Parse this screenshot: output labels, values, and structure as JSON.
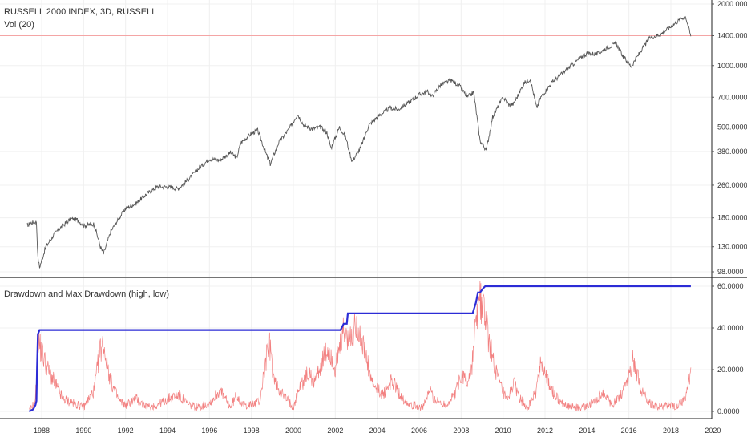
{
  "header": {
    "symbol_line": "RUSSELL 2000 INDEX, 3D, RUSSELL",
    "volume_line": "Vol (20)"
  },
  "lower_pane": {
    "title": "Drawdown and Max Drawdown (high, low)"
  },
  "colors": {
    "price_line": "#555555",
    "reference_line": "#f4a5a5",
    "drawdown": "#f06a6a",
    "max_drawdown": "#2c2cd6",
    "grid": "#f0f0f0",
    "axis_text": "#333333"
  },
  "chart_data": [
    {
      "type": "line",
      "title": "RUSSELL 2000 INDEX, 3D, RUSSELL",
      "y_scale": "log",
      "ylim": [
        92,
        2050
      ],
      "xlim": [
        1986,
        2020
      ],
      "x_ticks": [
        "1988",
        "1990",
        "1992",
        "1994",
        "1996",
        "1998",
        "2000",
        "2002",
        "2004",
        "2006",
        "2008",
        "2010",
        "2012",
        "2014",
        "2016",
        "2018",
        "2020"
      ],
      "y_ticks": [
        "98.0000",
        "130.0000",
        "180.0000",
        "260.0000",
        "380.0000",
        "500.0000",
        "700.0000",
        "1000.0000",
        "1400.0000",
        "2000.0000"
      ],
      "reference_line": 1400,
      "series": [
        {
          "x": [
            1987.3,
            1987.5,
            1987.75,
            1987.82,
            1987.9,
            1988.2,
            1988.6,
            1989.0,
            1989.4,
            1989.7,
            1990.0,
            1990.5,
            1990.8,
            1990.95,
            1991.3,
            1991.7,
            1992.0,
            1992.5,
            1993.0,
            1993.5,
            1994.0,
            1994.5,
            1995.0,
            1995.5,
            1996.0,
            1996.5,
            1997.0,
            1997.3,
            1997.5,
            1998.0,
            1998.3,
            1998.7,
            1998.9,
            1999.3,
            1999.8,
            2000.2,
            2000.5,
            2000.9,
            2001.3,
            2001.6,
            2001.8,
            2002.2,
            2002.5,
            2002.8,
            2003.2,
            2003.6,
            2004.0,
            2004.6,
            2005.0,
            2005.5,
            2006.0,
            2006.4,
            2006.6,
            2007.0,
            2007.5,
            2007.9,
            2008.3,
            2008.6,
            2008.9,
            2009.2,
            2009.5,
            2010.0,
            2010.3,
            2010.5,
            2011.0,
            2011.3,
            2011.6,
            2011.8,
            2012.3,
            2013.0,
            2013.5,
            2014.0,
            2014.5,
            2015.0,
            2015.4,
            2015.7,
            2016.1,
            2016.5,
            2017.0,
            2017.5,
            2018.0,
            2018.5,
            2018.7,
            2018.95
          ],
          "values": [
            165,
            170,
            172,
            115,
            103,
            130,
            150,
            165,
            178,
            176,
            165,
            168,
            130,
            120,
            155,
            180,
            200,
            212,
            235,
            255,
            255,
            250,
            278,
            315,
            350,
            345,
            375,
            355,
            420,
            465,
            482,
            370,
            330,
            420,
            490,
            580,
            510,
            490,
            500,
            470,
            395,
            500,
            445,
            340,
            395,
            510,
            560,
            620,
            610,
            660,
            720,
            745,
            705,
            800,
            850,
            800,
            700,
            740,
            430,
            385,
            560,
            700,
            640,
            650,
            820,
            860,
            620,
            700,
            820,
            950,
            1050,
            1150,
            1140,
            1230,
            1280,
            1120,
            990,
            1150,
            1370,
            1420,
            1550,
            1700,
            1740,
            1390
          ]
        }
      ]
    },
    {
      "type": "line",
      "title": "Drawdown and Max Drawdown (high, low)",
      "ylim": [
        -2,
        62
      ],
      "xlim": [
        1986,
        2020
      ],
      "y_ticks": [
        "0.0000",
        "20.0000",
        "40.0000",
        "60.0000"
      ],
      "series": [
        {
          "name": "Max Drawdown",
          "x": [
            1987.4,
            1987.6,
            1987.7,
            1987.75,
            1987.78,
            1987.82,
            1987.9,
            2002.1,
            2002.25,
            2002.4,
            2002.55,
            2002.6,
            2002.7,
            2008.55,
            2008.7,
            2008.8,
            2008.9,
            2009.05,
            2009.15,
            2018.95
          ],
          "values": [
            0,
            1,
            3,
            5,
            20,
            37,
            39,
            39,
            39,
            42,
            42,
            47,
            47,
            47,
            52,
            57,
            57,
            59,
            60,
            60
          ]
        },
        {
          "name": "Drawdown",
          "x": [
            1987.4,
            1987.7,
            1987.82,
            1987.95,
            1988.3,
            1988.7,
            1989.0,
            1989.5,
            1990.0,
            1990.5,
            1990.8,
            1990.95,
            1991.3,
            1991.7,
            1992.0,
            1992.5,
            1993.0,
            1993.5,
            1994.0,
            1994.5,
            1995.0,
            1995.5,
            1996.0,
            1996.5,
            1997.0,
            1997.3,
            1997.6,
            1998.0,
            1998.4,
            1998.7,
            1998.85,
            1999.1,
            1999.5,
            2000.0,
            2000.3,
            2000.7,
            2001.0,
            2001.3,
            2001.7,
            2002.0,
            2002.4,
            2002.8,
            2003.0,
            2003.4,
            2003.8,
            2004.3,
            2004.7,
            2005.2,
            2005.7,
            2006.2,
            2006.5,
            2006.8,
            2007.3,
            2007.7,
            2008.0,
            2008.3,
            2008.5,
            2008.7,
            2008.9,
            2009.1,
            2009.4,
            2009.8,
            2010.2,
            2010.5,
            2010.8,
            2011.2,
            2011.6,
            2011.8,
            2012.2,
            2012.6,
            2013.0,
            2013.5,
            2014.0,
            2014.4,
            2014.8,
            2015.2,
            2015.6,
            2016.0,
            2016.2,
            2016.6,
            2017.0,
            2017.4,
            2017.8,
            2018.2,
            2018.6,
            2018.75,
            2018.95
          ],
          "values": [
            0,
            5,
            36,
            30,
            20,
            12,
            6,
            4,
            2,
            10,
            30,
            32,
            14,
            5,
            3,
            6,
            2,
            3,
            6,
            8,
            3,
            2,
            4,
            10,
            2,
            8,
            3,
            3,
            5,
            25,
            33,
            14,
            8,
            2,
            12,
            18,
            15,
            22,
            30,
            20,
            38,
            34,
            44,
            28,
            12,
            8,
            15,
            6,
            3,
            2,
            10,
            5,
            3,
            8,
            18,
            14,
            20,
            42,
            54,
            48,
            30,
            14,
            4,
            14,
            6,
            2,
            10,
            25,
            12,
            6,
            3,
            2,
            2,
            5,
            9,
            3,
            8,
            17,
            26,
            10,
            4,
            2,
            3,
            2,
            5,
            8,
            21
          ]
        }
      ]
    }
  ]
}
